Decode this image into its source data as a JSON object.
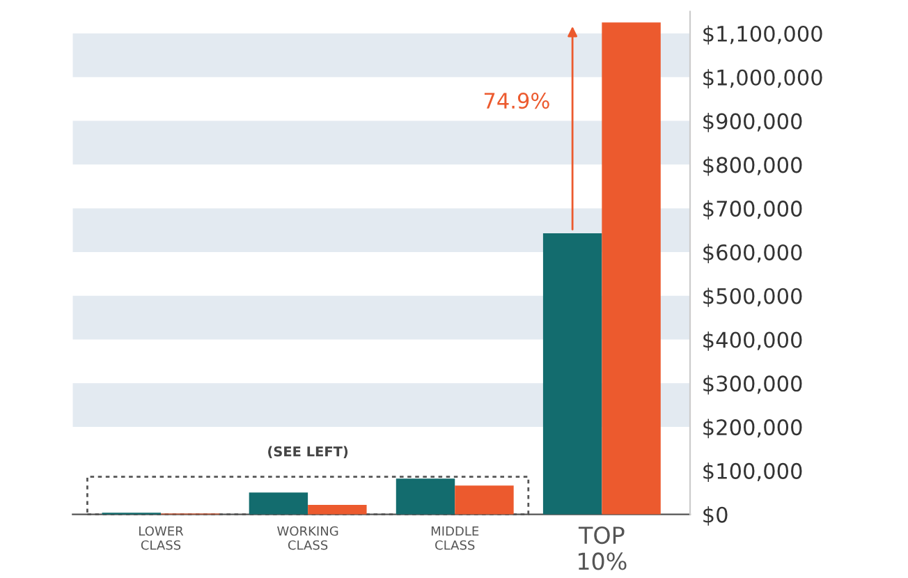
{
  "chart_data": {
    "type": "bar",
    "categories": [
      "LOWER\nCLASS",
      "WORKING\nCLASS",
      "MIDDLE\nCLASS",
      "TOP\n10%"
    ],
    "series": [
      {
        "color": "#136c6e",
        "values": [
          4000,
          50000,
          82000,
          643000
        ]
      },
      {
        "color": "#ec5a2e",
        "values": [
          2000,
          22000,
          66000,
          1125000
        ]
      }
    ],
    "ylim": [
      0,
      1150000
    ],
    "yticks": [
      {
        "value": 0,
        "label": "$0"
      },
      {
        "value": 100000,
        "label": "$100,000"
      },
      {
        "value": 200000,
        "label": "$200,000"
      },
      {
        "value": 300000,
        "label": "$300,000"
      },
      {
        "value": 400000,
        "label": "$400,000"
      },
      {
        "value": 500000,
        "label": "$500,000"
      },
      {
        "value": 600000,
        "label": "$600,000"
      },
      {
        "value": 700000,
        "label": "$700,000"
      },
      {
        "value": 800000,
        "label": "$800,000"
      },
      {
        "value": 900000,
        "label": "$900,000"
      },
      {
        "value": 1000000,
        "label": "$1,000,000"
      },
      {
        "value": 1100000,
        "label": "$1,100,000"
      }
    ],
    "bands": [
      {
        "axis": "y",
        "from": 200000,
        "to": 300000,
        "color": "#e3eaf1"
      },
      {
        "axis": "y",
        "from": 400000,
        "to": 500000,
        "color": "#e3eaf1"
      },
      {
        "axis": "y",
        "from": 600000,
        "to": 700000,
        "color": "#e3eaf1"
      },
      {
        "axis": "y",
        "from": 800000,
        "to": 900000,
        "color": "#e3eaf1"
      },
      {
        "axis": "y",
        "from": 1000000,
        "to": 1100000,
        "color": "#e3eaf1"
      }
    ],
    "annotations": [
      "74.9%",
      "(SEE LEFT)"
    ],
    "grid": false,
    "legend": false
  }
}
